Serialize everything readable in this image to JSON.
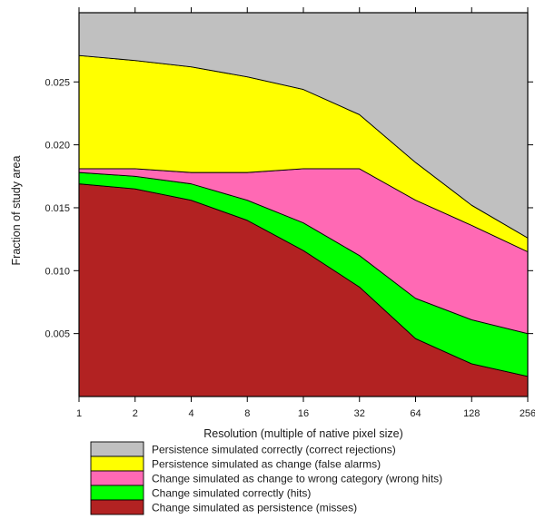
{
  "chart_data": {
    "type": "area",
    "stacked": true,
    "x_scale": "log2",
    "x": [
      1,
      2,
      4,
      8,
      16,
      32,
      64,
      128,
      256
    ],
    "xtick_labels": [
      "1",
      "2",
      "4",
      "8",
      "16",
      "32",
      "64",
      "128",
      "256"
    ],
    "xlabel": "Resolution (multiple of native pixel size)",
    "ylabel": "Fraction of study area",
    "ylim": [
      0,
      0.0305
    ],
    "ytick_values": [
      0.005,
      0.01,
      0.015,
      0.02,
      0.025
    ],
    "ytick_labels": [
      "0.005",
      "0.010",
      "0.015",
      "0.020",
      "0.025"
    ],
    "grid": false,
    "legend_position": "bottom",
    "series": [
      {
        "name": "Change simulated as persistence (misses)",
        "color": "#b22222",
        "values": [
          0.0169,
          0.0165,
          0.0156,
          0.014,
          0.0116,
          0.0087,
          0.0046,
          0.0026,
          0.0016
        ]
      },
      {
        "name": "Change simulated correctly (hits)",
        "color": "#00ff00",
        "values": [
          0.0009,
          0.001,
          0.0013,
          0.0016,
          0.0022,
          0.0025,
          0.0032,
          0.0035,
          0.0034
        ]
      },
      {
        "name": "Change simulated as change to wrong category (wrong hits)",
        "color": "#ff69b4",
        "values": [
          0.0003,
          0.0006,
          0.0009,
          0.0022,
          0.0043,
          0.0069,
          0.0078,
          0.0075,
          0.0065
        ]
      },
      {
        "name": "Persistence simulated as change (false alarms)",
        "color": "#ffff00",
        "values": [
          0.009,
          0.0086,
          0.0084,
          0.0076,
          0.0063,
          0.0043,
          0.003,
          0.0016,
          0.0011
        ]
      },
      {
        "name": "Persistence simulated correctly (correct rejections)",
        "color": "#c0c0c0",
        "values": [
          0.0034,
          0.0038,
          0.0043,
          0.0051,
          0.0061,
          0.0081,
          0.0119,
          0.0153,
          0.0179
        ]
      }
    ],
    "legend_order": [
      "Persistence simulated correctly (correct rejections)",
      "Persistence simulated as change (false alarms)",
      "Change simulated as change to wrong category (wrong hits)",
      "Change simulated correctly (hits)",
      "Change simulated as persistence (misses)"
    ]
  }
}
